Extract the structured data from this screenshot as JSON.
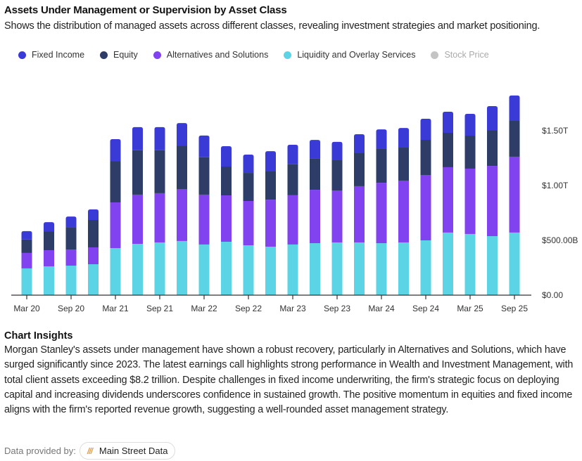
{
  "header": {
    "title": "Assets Under Management or Supervision by Asset Class",
    "subtitle": "Shows the distribution of managed assets across different classes, revealing investment strategies and market positioning."
  },
  "legend": [
    {
      "label": "Fixed Income",
      "color": "#3a3ad6",
      "enabled": true
    },
    {
      "label": "Equity",
      "color": "#2e3c68",
      "enabled": true
    },
    {
      "label": "Alternatives and Solutions",
      "color": "#8142f0",
      "enabled": true
    },
    {
      "label": "Liquidity and Overlay Services",
      "color": "#5bd5e5",
      "enabled": true
    },
    {
      "label": "Stock Price",
      "color": "#b5b5b5",
      "enabled": false
    }
  ],
  "chart_data": {
    "type": "bar",
    "stacked": true,
    "title": "Assets Under Management or Supervision by Asset Class",
    "xlabel": "",
    "ylabel": "",
    "categories": [
      "Mar 20",
      "Jun 20",
      "Sep 20",
      "Dec 20",
      "Mar 21",
      "Jun 21",
      "Sep 21",
      "Dec 21",
      "Mar 22",
      "Jun 22",
      "Sep 22",
      "Dec 22",
      "Mar 23",
      "Jun 23",
      "Sep 23",
      "Dec 23",
      "Mar 24",
      "Jun 24",
      "Sep 24",
      "Dec 24",
      "Mar 25",
      "Jun 25",
      "Sep 25"
    ],
    "x_tick_labels": [
      "Mar 20",
      "Sep 20",
      "Mar 21",
      "Sep 21",
      "Mar 22",
      "Sep 22",
      "Mar 23",
      "Sep 23",
      "Mar 24",
      "Sep 24",
      "Mar 25",
      "Sep 25"
    ],
    "units": "USD billions",
    "series": [
      {
        "name": "Liquidity and Overlay Services",
        "color": "#5bd5e5",
        "values": [
          244,
          263,
          269,
          282,
          429,
          468,
          481,
          494,
          462,
          487,
          455,
          442,
          462,
          474,
          481,
          481,
          474,
          481,
          500,
          571,
          558,
          538,
          571
        ]
      },
      {
        "name": "Alternatives and Solutions",
        "color": "#8142f0",
        "values": [
          141,
          147,
          147,
          154,
          417,
          449,
          449,
          474,
          455,
          423,
          404,
          429,
          449,
          487,
          474,
          513,
          551,
          564,
          596,
          596,
          596,
          641,
          692
        ]
      },
      {
        "name": "Equity",
        "color": "#2e3c68",
        "values": [
          122,
          173,
          205,
          250,
          378,
          404,
          391,
          397,
          340,
          263,
          256,
          263,
          282,
          288,
          276,
          301,
          314,
          301,
          321,
          314,
          301,
          327,
          327
        ]
      },
      {
        "name": "Fixed Income",
        "color": "#3a3ad6",
        "values": [
          77,
          83,
          96,
          96,
          199,
          212,
          212,
          205,
          199,
          186,
          167,
          179,
          179,
          167,
          167,
          173,
          173,
          179,
          192,
          192,
          199,
          218,
          231
        ]
      }
    ],
    "y_ticks": [
      {
        "value": 0,
        "label": "$0.00"
      },
      {
        "value": 500,
        "label": "$500.00B"
      },
      {
        "value": 1000,
        "label": "$1.00T"
      },
      {
        "value": 1500,
        "label": "$1.50T"
      }
    ],
    "ylim": [
      0,
      1800
    ],
    "y_axis_position": "right",
    "grid": false,
    "legend_position": "top-left"
  },
  "insights": {
    "title": "Chart Insights",
    "text": "Morgan Stanley's assets under management have shown a robust recovery, particularly in Alternatives and Solutions, which have surged significantly since 2023. The latest earnings call highlights strong performance in Wealth and Investment Management, with total client assets exceeding $8.2 trillion. Despite challenges in fixed income underwriting, the firm's strategic focus on deploying capital and increasing dividends underscores confidence in sustained growth. The positive momentum in equities and fixed income aligns with the firm's reported revenue growth, suggesting a well-rounded asset management strategy."
  },
  "footer": {
    "label": "Data provided by:",
    "provider_icon": "///",
    "provider": "Main Street Data"
  }
}
